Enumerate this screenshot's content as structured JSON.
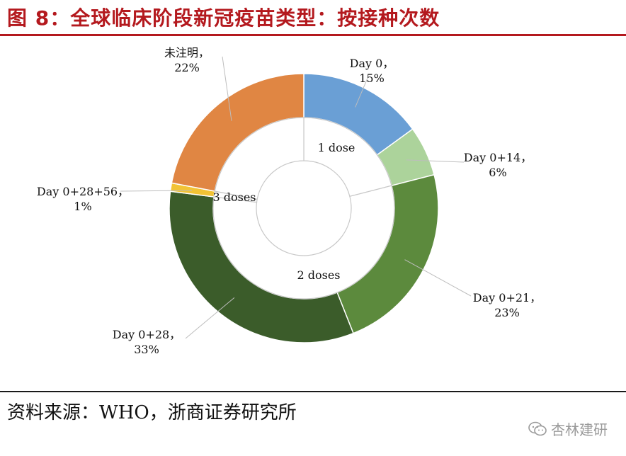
{
  "title": "图 8：全球临床阶段新冠疫苗类型：按接种次数",
  "source": "资料来源：WHO，浙商证券研究所",
  "watermark": "杏林建研",
  "chart_data": {
    "type": "pie",
    "donut": true,
    "outer_ring": [
      {
        "label": "Day 0",
        "value": 15,
        "color": "#6a9fd5"
      },
      {
        "label": "Day 0+14",
        "value": 6,
        "color": "#acd39b"
      },
      {
        "label": "Day 0+21",
        "value": 23,
        "color": "#5c8a3d"
      },
      {
        "label": "Day 0+28",
        "value": 33,
        "color": "#3b5c2a"
      },
      {
        "label": "Day 0+28+56",
        "value": 1,
        "color": "#f2c335"
      },
      {
        "label": "未注明",
        "value": 22,
        "color": "#e08643"
      }
    ],
    "data_labels": [
      {
        "name": "Day 0，",
        "pct": "15%"
      },
      {
        "name": "Day 0+14，",
        "pct": "6%"
      },
      {
        "name": "Day 0+21，",
        "pct": "23%"
      },
      {
        "name": "Day 0+28，",
        "pct": "33%"
      },
      {
        "name": "Day 0+28+56，",
        "pct": "1%"
      },
      {
        "name": "未注明，",
        "pct": "22%"
      }
    ],
    "inner_ring_labels": [
      "1 dose",
      "2 doses",
      "3 doses"
    ]
  }
}
